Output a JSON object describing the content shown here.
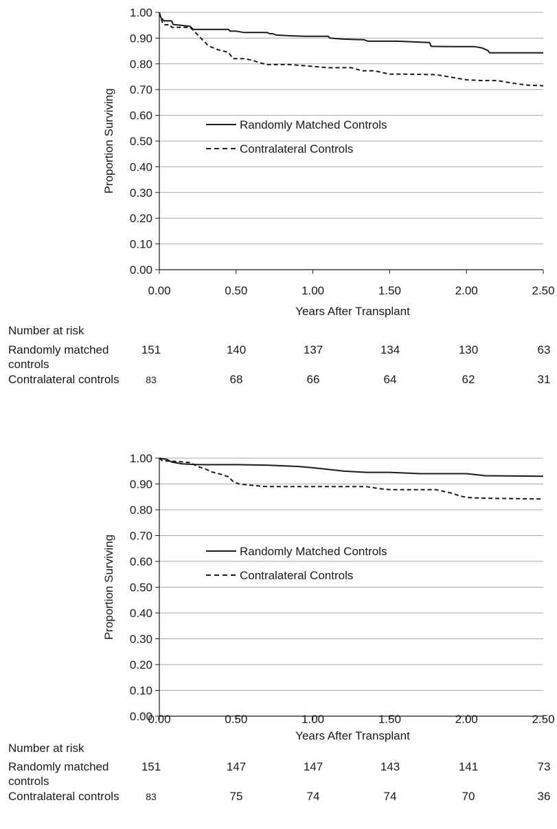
{
  "chart_data": [
    {
      "type": "line",
      "xlabel": "Years After Transplant",
      "ylabel": "Proportion Surviving",
      "xlim": [
        0,
        2.5
      ],
      "ylim": [
        0,
        1
      ],
      "x_ticks": [
        "0.00",
        "0.50",
        "1.00",
        "1.50",
        "2.00",
        "2.50"
      ],
      "y_ticks": [
        "0.00",
        "0.10",
        "0.20",
        "0.30",
        "0.40",
        "0.50",
        "0.60",
        "0.70",
        "0.80",
        "0.90",
        "1.00"
      ],
      "grid": "horizontal",
      "legend": "center-left",
      "series": [
        {
          "name": "Randomly Matched Controls",
          "style": "solid",
          "points": [
            [
              0,
              1.0
            ],
            [
              0.01,
              0.98
            ],
            [
              0.03,
              0.967
            ],
            [
              0.08,
              0.967
            ],
            [
              0.09,
              0.953
            ],
            [
              0.2,
              0.946
            ],
            [
              0.22,
              0.934
            ],
            [
              0.45,
              0.934
            ],
            [
              0.46,
              0.927
            ],
            [
              0.5,
              0.927
            ],
            [
              0.55,
              0.922
            ],
            [
              0.7,
              0.922
            ],
            [
              0.72,
              0.917
            ],
            [
              0.74,
              0.917
            ],
            [
              0.76,
              0.912
            ],
            [
              0.85,
              0.909
            ],
            [
              0.95,
              0.907
            ],
            [
              1.1,
              0.907
            ],
            [
              1.11,
              0.9
            ],
            [
              1.2,
              0.896
            ],
            [
              1.3,
              0.894
            ],
            [
              1.33,
              0.894
            ],
            [
              1.36,
              0.888
            ],
            [
              1.55,
              0.888
            ],
            [
              1.75,
              0.883
            ],
            [
              1.76,
              0.883
            ],
            [
              1.77,
              0.868
            ],
            [
              1.9,
              0.867
            ],
            [
              2.05,
              0.867
            ],
            [
              2.1,
              0.862
            ],
            [
              2.14,
              0.852
            ],
            [
              2.15,
              0.843
            ],
            [
              2.5,
              0.843
            ]
          ]
        },
        {
          "name": "Contralateral Controls",
          "style": "dashed",
          "points": [
            [
              0,
              1.0
            ],
            [
              0.02,
              0.96
            ],
            [
              0.03,
              0.952
            ],
            [
              0.07,
              0.952
            ],
            [
              0.08,
              0.942
            ],
            [
              0.2,
              0.942
            ],
            [
              0.23,
              0.925
            ],
            [
              0.27,
              0.9
            ],
            [
              0.32,
              0.87
            ],
            [
              0.38,
              0.855
            ],
            [
              0.45,
              0.845
            ],
            [
              0.48,
              0.82
            ],
            [
              0.55,
              0.82
            ],
            [
              0.6,
              0.815
            ],
            [
              0.65,
              0.805
            ],
            [
              0.7,
              0.797
            ],
            [
              0.85,
              0.797
            ],
            [
              1.0,
              0.79
            ],
            [
              1.1,
              0.785
            ],
            [
              1.25,
              0.785
            ],
            [
              1.32,
              0.773
            ],
            [
              1.4,
              0.773
            ],
            [
              1.5,
              0.76
            ],
            [
              1.6,
              0.76
            ],
            [
              1.8,
              0.758
            ],
            [
              1.9,
              0.748
            ],
            [
              2.0,
              0.738
            ],
            [
              2.1,
              0.735
            ],
            [
              2.2,
              0.735
            ],
            [
              2.3,
              0.725
            ],
            [
              2.4,
              0.717
            ],
            [
              2.5,
              0.715
            ]
          ]
        }
      ]
    },
    {
      "type": "line",
      "xlabel": "Years After Transplant",
      "ylabel": "Proportion Surviving",
      "xlim": [
        0,
        2.5
      ],
      "ylim": [
        0,
        1
      ],
      "x_ticks": [
        "0.00",
        "0.50",
        "1.00",
        "1.50",
        "2.00",
        "2.50"
      ],
      "y_ticks": [
        "0.00",
        "0.10",
        "0.20",
        "0.30",
        "0.40",
        "0.50",
        "0.60",
        "0.70",
        "0.80",
        "0.90",
        "1.00"
      ],
      "grid": "horizontal",
      "legend": "center-left",
      "series": [
        {
          "name": "Randomly Matched Controls",
          "style": "solid",
          "points": [
            [
              0,
              1.0
            ],
            [
              0.05,
              0.995
            ],
            [
              0.08,
              0.985
            ],
            [
              0.15,
              0.978
            ],
            [
              0.25,
              0.975
            ],
            [
              0.5,
              0.975
            ],
            [
              0.7,
              0.973
            ],
            [
              0.9,
              0.968
            ],
            [
              1.0,
              0.963
            ],
            [
              1.2,
              0.95
            ],
            [
              1.35,
              0.945
            ],
            [
              1.5,
              0.945
            ],
            [
              1.7,
              0.94
            ],
            [
              2.0,
              0.94
            ],
            [
              2.08,
              0.935
            ],
            [
              2.12,
              0.932
            ],
            [
              2.5,
              0.93
            ]
          ]
        },
        {
          "name": "Contralateral Controls",
          "style": "dashed",
          "points": [
            [
              0,
              1.0
            ],
            [
              0.02,
              0.99
            ],
            [
              0.1,
              0.988
            ],
            [
              0.2,
              0.983
            ],
            [
              0.25,
              0.968
            ],
            [
              0.3,
              0.958
            ],
            [
              0.35,
              0.945
            ],
            [
              0.4,
              0.938
            ],
            [
              0.45,
              0.928
            ],
            [
              0.48,
              0.91
            ],
            [
              0.52,
              0.9
            ],
            [
              0.6,
              0.895
            ],
            [
              0.7,
              0.89
            ],
            [
              0.9,
              0.89
            ],
            [
              1.1,
              0.89
            ],
            [
              1.35,
              0.89
            ],
            [
              1.42,
              0.883
            ],
            [
              1.5,
              0.878
            ],
            [
              1.8,
              0.878
            ],
            [
              1.9,
              0.865
            ],
            [
              1.95,
              0.855
            ],
            [
              2.0,
              0.848
            ],
            [
              2.1,
              0.845
            ],
            [
              2.5,
              0.842
            ]
          ]
        }
      ]
    }
  ],
  "risk_tables": [
    {
      "title": "Number at risk",
      "rows": [
        {
          "label": "Randomly matched",
          "label2": "controls",
          "values": [
            "151",
            "140",
            "137",
            "134",
            "130",
            "63"
          ]
        },
        {
          "label": "Contralateral controls",
          "label2": "",
          "values": [
            "83",
            "68",
            "66",
            "64",
            "62",
            "31"
          ]
        }
      ]
    },
    {
      "title": "Number at risk",
      "rows": [
        {
          "label": "Randomly matched",
          "label2": "controls",
          "values": [
            "151",
            "147",
            "147",
            "143",
            "141",
            "73"
          ]
        },
        {
          "label": "Contralateral controls",
          "label2": "",
          "values": [
            "83",
            "75",
            "74",
            "74",
            "70",
            "36"
          ]
        }
      ]
    }
  ]
}
